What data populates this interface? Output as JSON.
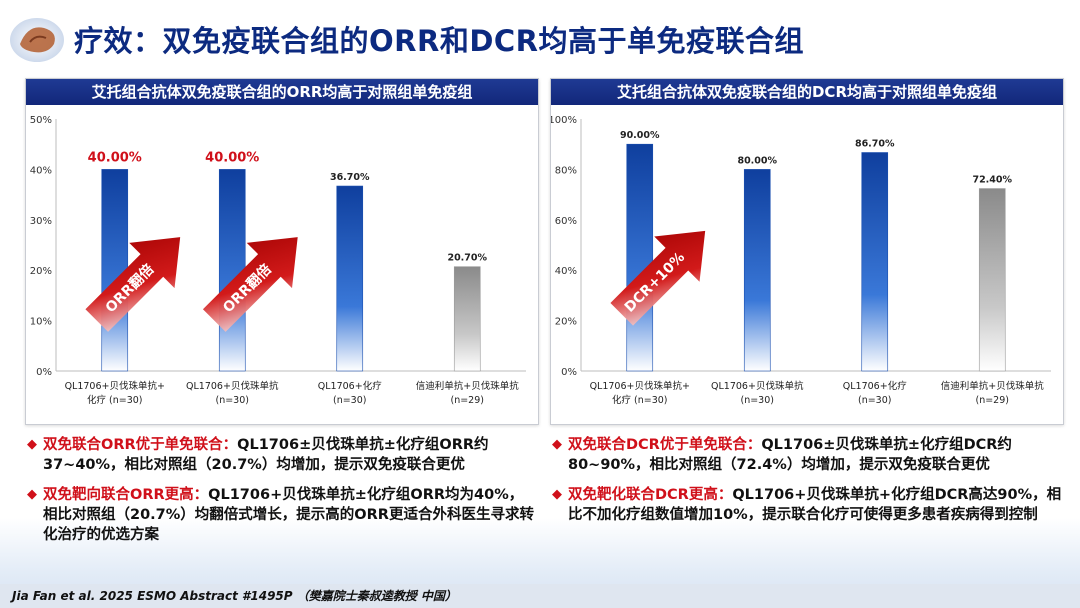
{
  "page": {
    "title": "疗效：双免疫联合组的ORR和DCR均高于单免疫联合组",
    "footer": "Jia Fan et al. 2025 ESMO Abstract #1495P （樊嘉院士秦叔逵教授 中国）"
  },
  "colors": {
    "title": "#0c2a80",
    "accent_red": "#d0101a",
    "bar_blue": "#1a4fb0",
    "bar_gray": "#9a9a9a"
  },
  "chart_data": [
    {
      "type": "bar",
      "title": "艾托组合抗体双免疫联合组的ORR均高于对照组单免疫组",
      "categories": [
        [
          "QL1706+贝伐珠单抗+",
          "化疗 (n=30)"
        ],
        [
          "QL1706+贝伐珠单抗",
          "(n=30)"
        ],
        [
          "QL1706+化疗",
          "(n=30)"
        ],
        [
          "信迪利单抗+贝伐珠单抗",
          "(n=29)"
        ]
      ],
      "values": [
        40.0,
        40.0,
        36.7,
        20.7
      ],
      "value_labels": [
        "40.00%",
        "40.00%",
        "36.70%",
        "20.70%"
      ],
      "highlight": [
        true,
        true,
        false,
        false
      ],
      "bar_style": [
        "blue",
        "blue",
        "blue",
        "gray"
      ],
      "ylim": [
        0,
        50
      ],
      "yticks": [
        "0%",
        "10%",
        "20%",
        "30%",
        "40%",
        "50%"
      ],
      "annotations": [
        {
          "text": "ORR翻倍",
          "bar": 0
        },
        {
          "text": "ORR翻倍",
          "bar": 1
        }
      ],
      "grid": false
    },
    {
      "type": "bar",
      "title": "艾托组合抗体双免疫联合组的DCR均高于对照组单免疫组",
      "categories": [
        [
          "QL1706+贝伐珠单抗+",
          "化疗 (n=30)"
        ],
        [
          "QL1706+贝伐珠单抗",
          "(n=30)"
        ],
        [
          "QL1706+化疗",
          "(n=30)"
        ],
        [
          "信迪利单抗+贝伐珠单抗",
          "(n=29)"
        ]
      ],
      "values": [
        90.0,
        80.0,
        86.7,
        72.4
      ],
      "value_labels": [
        "90.00%",
        "80.00%",
        "86.70%",
        "72.40%"
      ],
      "highlight": [
        false,
        false,
        false,
        false
      ],
      "bar_style": [
        "blue",
        "blue",
        "blue",
        "gray"
      ],
      "ylim": [
        0,
        100
      ],
      "yticks": [
        "0%",
        "20%",
        "40%",
        "60%",
        "80%",
        "100%"
      ],
      "annotations": [
        {
          "text": "DCR+10%",
          "bar": 0
        }
      ],
      "grid": false
    }
  ],
  "bullets_left": [
    {
      "lead": "双免联合ORR优于单免联合：",
      "text": "QL1706±贝伐珠单抗±化疗组ORR约37~40%，相比对照组（20.7%）均增加，提示双免疫联合更优"
    },
    {
      "lead": "双免靶向联合ORR更高：",
      "text": "QL1706+贝伐珠单抗±化疗组ORR均为40%，相比对照组（20.7%）均翻倍式增长，提示高的ORR更适合外科医生寻求转化治疗的优选方案"
    }
  ],
  "bullets_right": [
    {
      "lead": "双免联合DCR优于单免联合：",
      "text": "QL1706±贝伐珠单抗±化疗组DCR约80~90%，相比对照组（72.4%）均增加，提示双免疫联合更优"
    },
    {
      "lead": "双免靶化联合DCR更高：",
      "text": "QL1706+贝伐珠单抗+化疗组DCR高达90%，相比不加化疗组数值增加10%，提示联合化疗可使得更多患者疾病得到控制"
    }
  ]
}
